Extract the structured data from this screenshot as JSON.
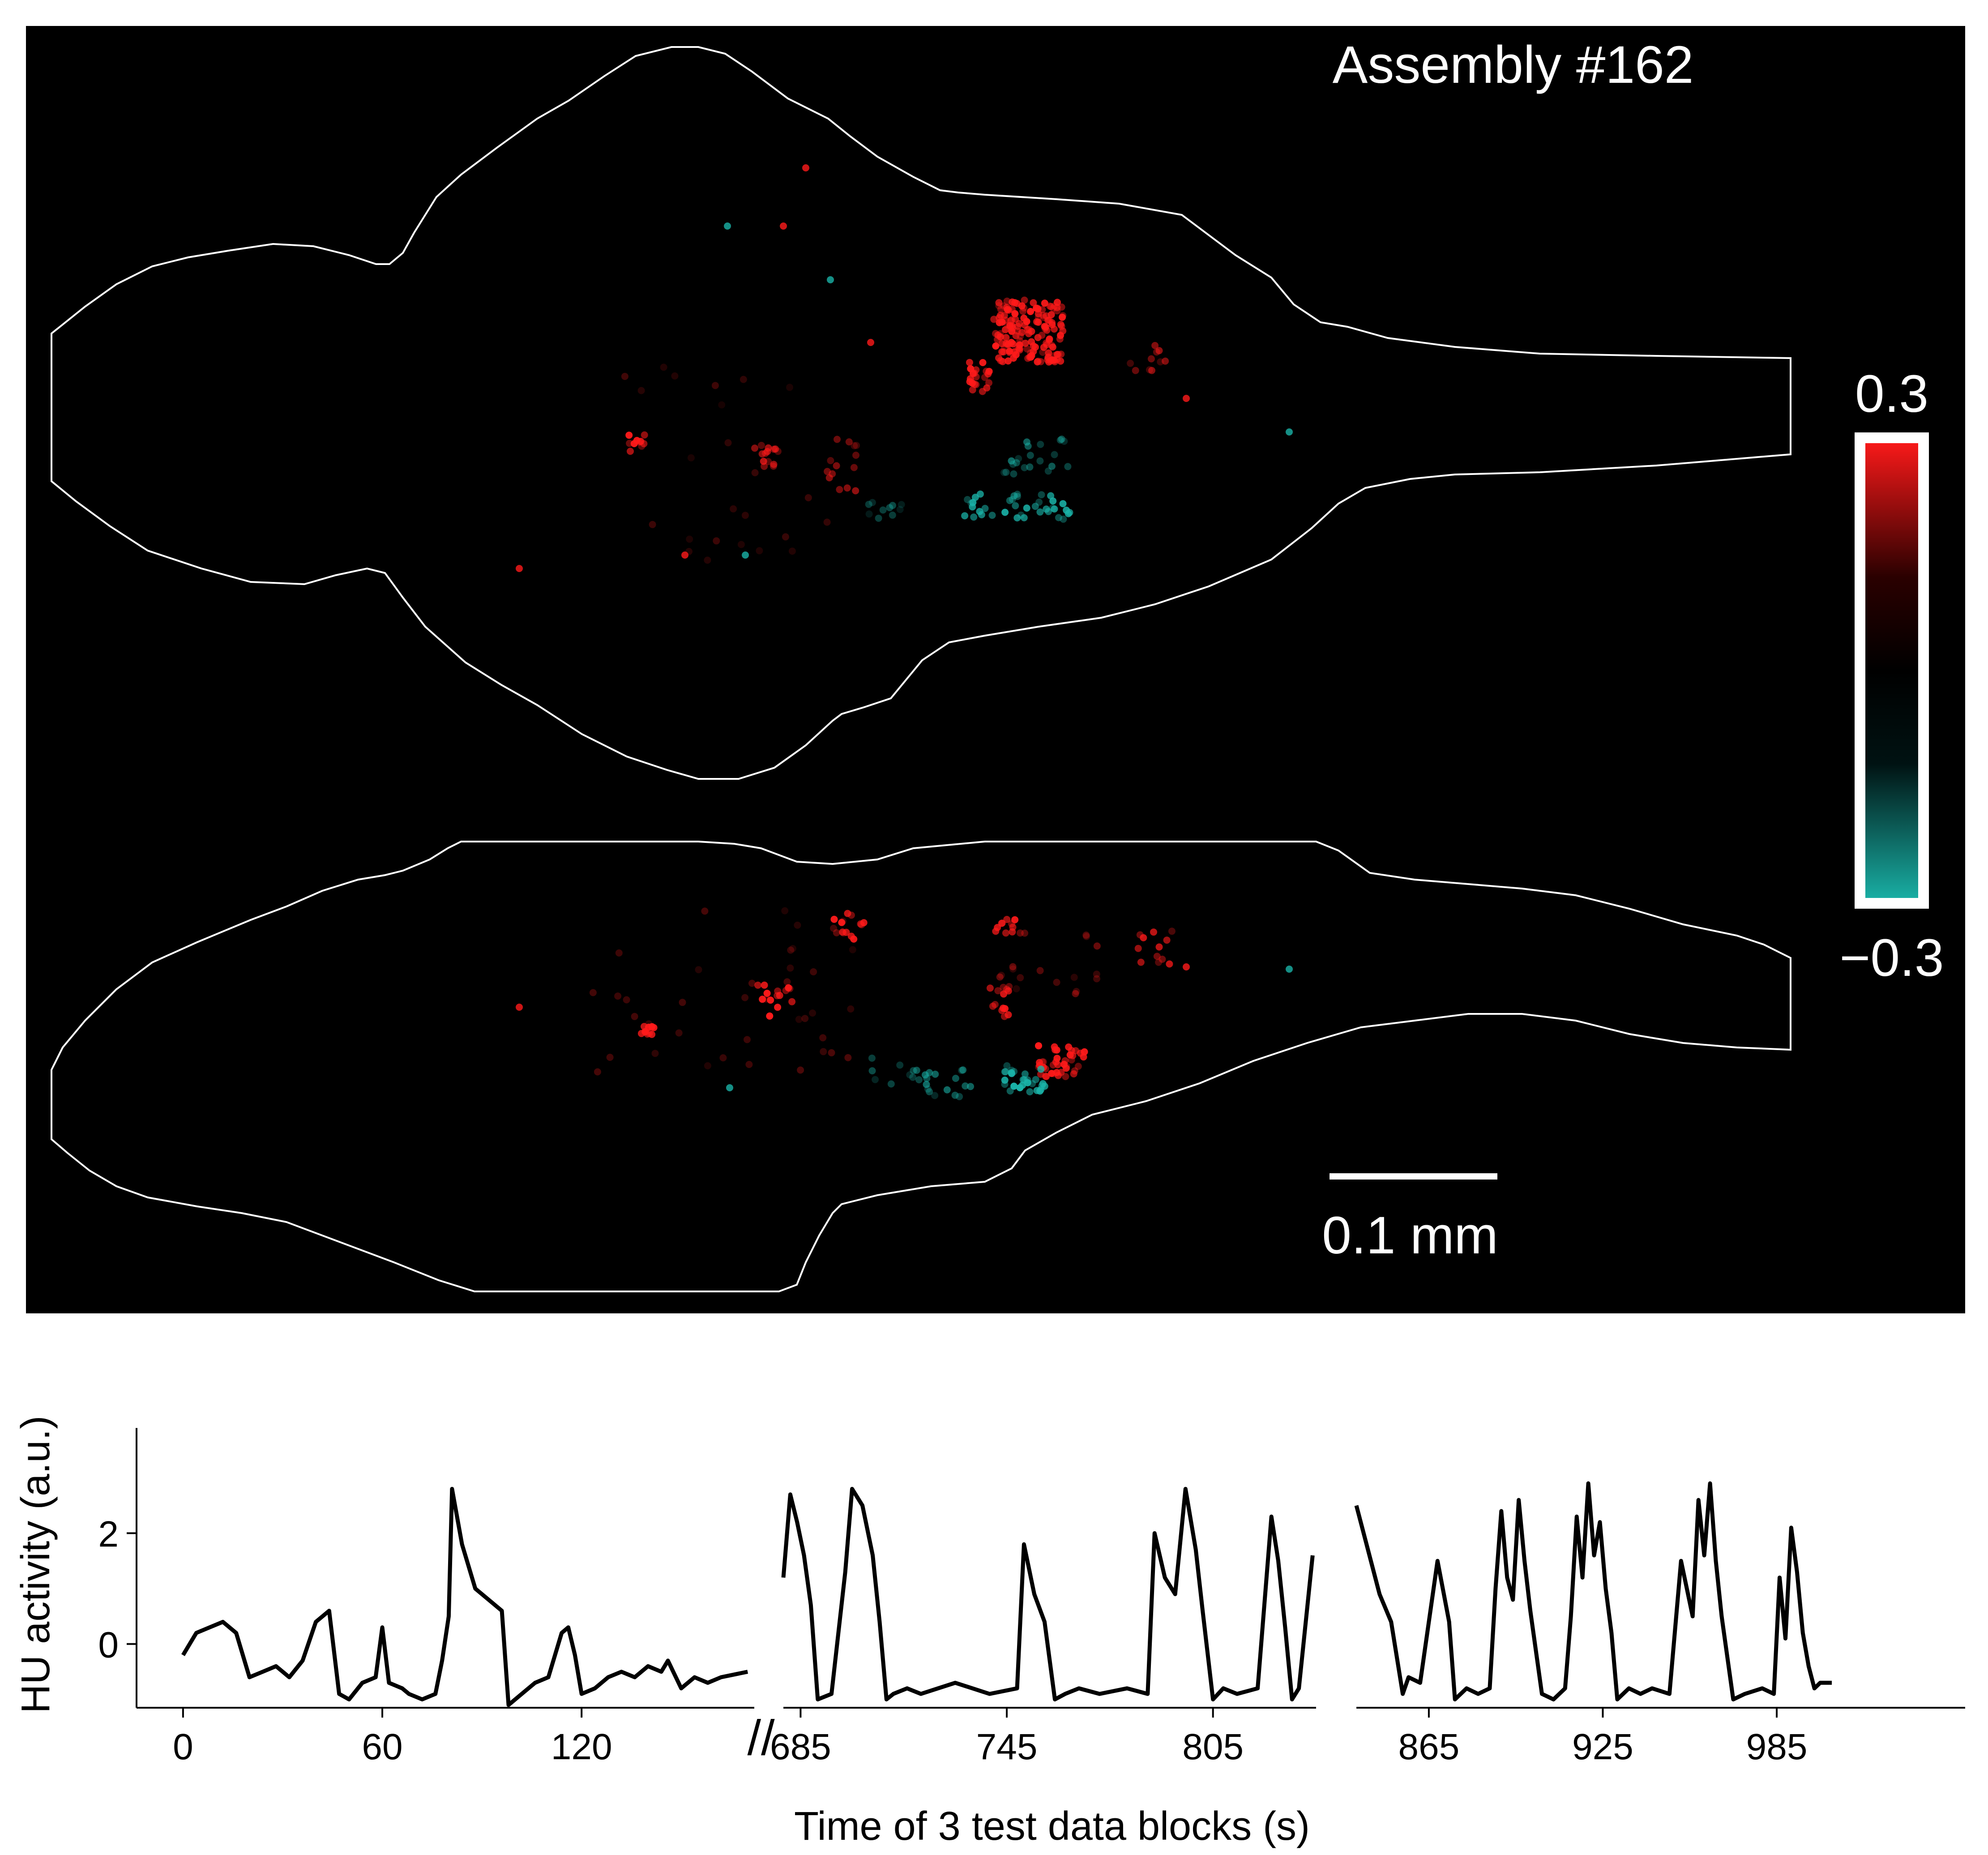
{
  "brain_panel": {
    "title": "Assembly #162",
    "colorbar": {
      "max_label": "0.3",
      "min_label": "−0.3",
      "max_value": 0.3,
      "min_value": -0.3,
      "positive_color": "#ff1a1a",
      "zero_color": "#000000",
      "negative_color": "#1ab3a8"
    },
    "scale_bar_label": "0.1 mm",
    "background_color": "#000000",
    "outline_color": "#ffffff"
  },
  "chart_data": {
    "type": "line",
    "ylabel": "HU activity (a.u.)",
    "xlabel": "Time of 3 test data blocks (s)",
    "ylim": [
      -1.15,
      3.9
    ],
    "yticks": [
      0,
      2
    ],
    "axis_break_marker": "//",
    "segments": [
      {
        "xlim": [
          -14,
          172
        ],
        "xticks": [
          0,
          60,
          120
        ],
        "x": [
          0,
          4,
          8,
          12,
          16,
          20,
          24,
          28,
          32,
          36,
          40,
          44,
          47,
          50,
          54,
          58,
          60,
          62,
          66,
          68,
          72,
          76,
          78,
          80,
          81,
          84,
          88,
          92,
          96,
          98,
          102,
          106,
          110,
          114,
          116,
          118,
          120,
          124,
          128,
          132,
          136,
          140,
          144,
          146,
          150,
          154,
          158,
          162,
          170
        ],
        "values": [
          -0.2,
          0.2,
          0.3,
          0.4,
          0.2,
          -0.6,
          -0.5,
          -0.4,
          -0.6,
          -0.3,
          0.4,
          0.6,
          -0.9,
          -1.0,
          -0.7,
          -0.6,
          0.3,
          -0.7,
          -0.8,
          -0.9,
          -1.0,
          -0.9,
          -0.3,
          0.5,
          2.8,
          1.8,
          1.0,
          0.8,
          0.6,
          -1.1,
          -0.9,
          -0.7,
          -0.6,
          0.2,
          0.3,
          -0.2,
          -0.9,
          -0.8,
          -0.6,
          -0.5,
          -0.6,
          -0.4,
          -0.5,
          -0.3,
          -0.8,
          -0.6,
          -0.7,
          -0.6,
          -0.5
        ]
      },
      {
        "xlim": [
          680,
          835
        ],
        "xticks": [
          685,
          745,
          805
        ],
        "x": [
          680,
          682,
          684,
          686,
          688,
          690,
          694,
          698,
          700,
          703,
          706,
          708,
          710,
          712,
          716,
          720,
          725,
          730,
          740,
          748,
          750,
          753,
          756,
          759,
          762,
          766,
          772,
          780,
          786,
          788,
          791,
          794,
          797,
          800,
          802,
          805,
          808,
          812,
          818,
          822,
          824,
          826,
          828,
          830,
          834
        ],
        "values": [
          1.2,
          2.7,
          2.2,
          1.6,
          0.7,
          -1.0,
          -0.9,
          1.3,
          2.8,
          2.5,
          1.6,
          0.4,
          -1.0,
          -0.9,
          -0.8,
          -0.9,
          -0.8,
          -0.7,
          -0.9,
          -0.8,
          1.8,
          0.9,
          0.4,
          -1.0,
          -0.9,
          -0.8,
          -0.9,
          -0.8,
          -0.9,
          2.0,
          1.2,
          0.9,
          2.8,
          1.7,
          0.6,
          -1.0,
          -0.8,
          -0.9,
          -0.8,
          2.3,
          1.5,
          0.3,
          -1.0,
          -0.8,
          1.6
        ]
      },
      {
        "xlim": [
          840,
          1050
        ],
        "xticks": [
          865,
          925,
          985
        ],
        "x": [
          840,
          842,
          846,
          848,
          852,
          856,
          858,
          862,
          868,
          872,
          874,
          878,
          882,
          886,
          888,
          890,
          892,
          894,
          896,
          898,
          900,
          904,
          908,
          912,
          914,
          916,
          918,
          920,
          922,
          924,
          926,
          928,
          930,
          934,
          938,
          942,
          948,
          952,
          956,
          958,
          960,
          962,
          964,
          966,
          970,
          974,
          980,
          984,
          986,
          988,
          990,
          992,
          994,
          996,
          998,
          1000,
          1004
        ],
        "values": [
          2.5,
          2.1,
          1.3,
          0.9,
          0.4,
          -0.9,
          -0.6,
          -0.7,
          1.5,
          0.4,
          -1.0,
          -0.8,
          -0.9,
          -0.8,
          1.0,
          2.4,
          1.2,
          0.8,
          2.6,
          1.5,
          0.6,
          -0.9,
          -1.0,
          -0.8,
          0.5,
          2.3,
          1.2,
          2.9,
          1.6,
          2.2,
          1.0,
          0.2,
          -1.0,
          -0.8,
          -0.9,
          -0.8,
          -0.9,
          1.5,
          0.5,
          2.6,
          1.6,
          2.9,
          1.5,
          0.5,
          -1.0,
          -0.9,
          -0.8,
          -0.9,
          1.2,
          0.1,
          2.1,
          1.3,
          0.2,
          -0.4,
          -0.8,
          -0.7,
          -0.7
        ]
      }
    ]
  }
}
